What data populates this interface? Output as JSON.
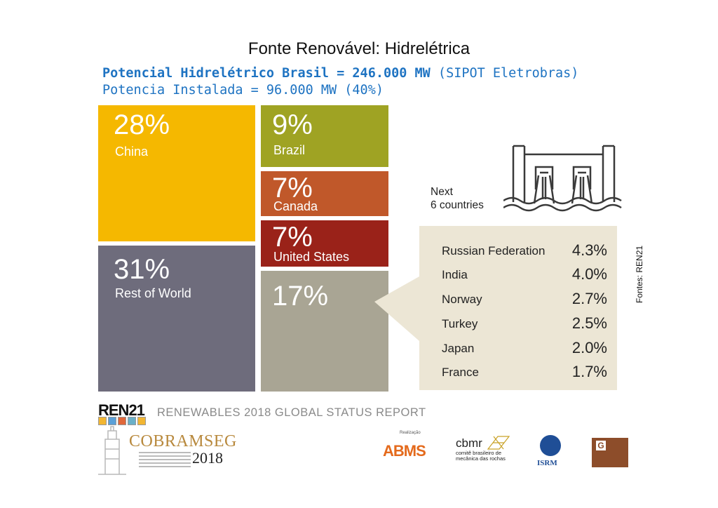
{
  "title": "Fonte Renovável: Hidrelétrica",
  "subtitle": {
    "bold": "Potencial Hidrelétrico Brasil = 246.000 MW",
    "normal": " (SIPOT Eletrobras)",
    "line2": "Potencia Instalada = 96.000 MW (40%)"
  },
  "chart_data": {
    "type": "treemap",
    "tiles": [
      {
        "pct": "28%",
        "label": "China",
        "value": 28,
        "color": "#f5b800"
      },
      {
        "pct": "31%",
        "label": "Rest of World",
        "value": 31,
        "color": "#6e6c7c"
      },
      {
        "pct": "9%",
        "label": "Brazil",
        "value": 9,
        "color": "#9fa323"
      },
      {
        "pct": "7%",
        "label": "Canada",
        "value": 7,
        "color": "#c0582a"
      },
      {
        "pct": "7%",
        "label": "United States",
        "value": 7,
        "color": "#9a2219"
      },
      {
        "pct": "17%",
        "label": "",
        "value": 17,
        "color": "#a9a594"
      }
    ],
    "next_label_1": "Next",
    "next_label_2": "6 countries",
    "next_countries": [
      {
        "country": "Russian Federation",
        "value": "4.3%"
      },
      {
        "country": "India",
        "value": "4.0%"
      },
      {
        "country": "Norway",
        "value": "2.7%"
      },
      {
        "country": "Turkey",
        "value": "2.5%"
      },
      {
        "country": "Japan",
        "value": "2.0%"
      },
      {
        "country": "France",
        "value": "1.7%"
      }
    ],
    "box_color": "#ece6d5"
  },
  "side_note": "Fontes: REN21",
  "footer": {
    "ren21": "REN21",
    "report": "RENEWABLES 2018 GLOBAL STATUS REPORT",
    "cobramseg": "COBRAMSEG",
    "cobramseg_year": "2018",
    "abms_top": "Realização",
    "abms": "ABMS",
    "cbmr": "cbmr",
    "cbmr_sub": "comitê brasileiro de mecânica das rochas",
    "isrm": "ISRM",
    "spg": "G"
  }
}
